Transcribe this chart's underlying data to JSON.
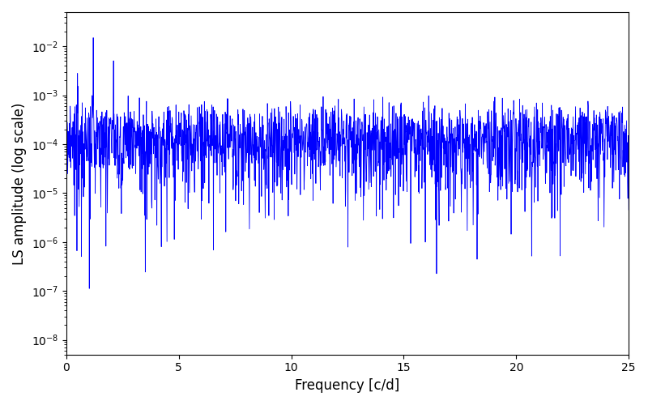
{
  "title": "",
  "xlabel": "Frequency [c/d]",
  "ylabel": "LS amplitude (log scale)",
  "line_color": "#0000ff",
  "xlim": [
    0,
    25
  ],
  "ylim": [
    5e-09,
    0.05
  ],
  "yticks": [
    1e-08,
    1e-07,
    1e-06,
    1e-05,
    0.0001,
    0.001,
    0.01
  ],
  "xticks": [
    0,
    5,
    10,
    15,
    20,
    25
  ],
  "freq_min": 0.0,
  "freq_max": 25.0,
  "n_points": 2000,
  "seed": 137
}
